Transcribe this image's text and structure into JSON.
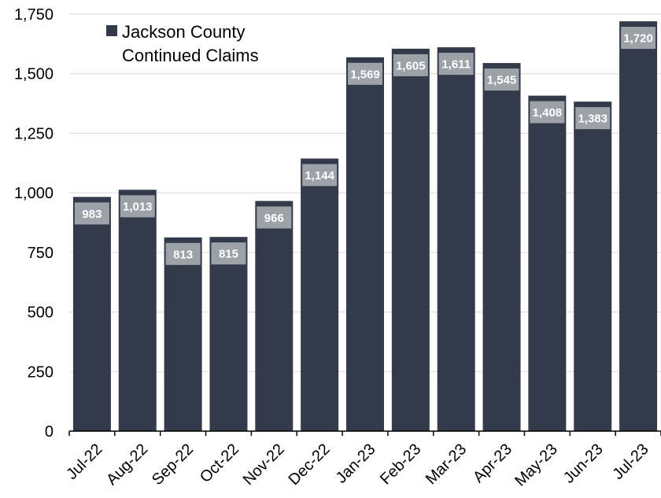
{
  "chart_data": {
    "type": "bar",
    "categories": [
      "Jul-22",
      "Aug-22",
      "Sep-22",
      "Oct-22",
      "Nov-22",
      "Dec-22",
      "Jan-23",
      "Feb-23",
      "Mar-23",
      "Apr-23",
      "May-23",
      "Jun-23",
      "Jul-23"
    ],
    "series": [
      {
        "name": "Jackson County\nContinued Claims",
        "values": [
          983,
          1013,
          813,
          815,
          966,
          1144,
          1569,
          1605,
          1611,
          1545,
          1408,
          1383,
          1720
        ],
        "data_labels": [
          "983",
          "1,013",
          "813",
          "815",
          "966",
          "1,144",
          "1,569",
          "1,605",
          "1,611",
          "1,545",
          "1,408",
          "1,383",
          "1,720"
        ]
      }
    ],
    "yticks": [
      "0",
      "250",
      "500",
      "750",
      "1,000",
      "1,250",
      "1,500",
      "1,750"
    ],
    "ylim": [
      0,
      1750
    ],
    "grid": true,
    "legend_position": "top-left",
    "colors": {
      "bar": "#333b4b",
      "label_box": "#9da1a8",
      "grid": "#d9d9d9",
      "axis": "#000000"
    }
  }
}
